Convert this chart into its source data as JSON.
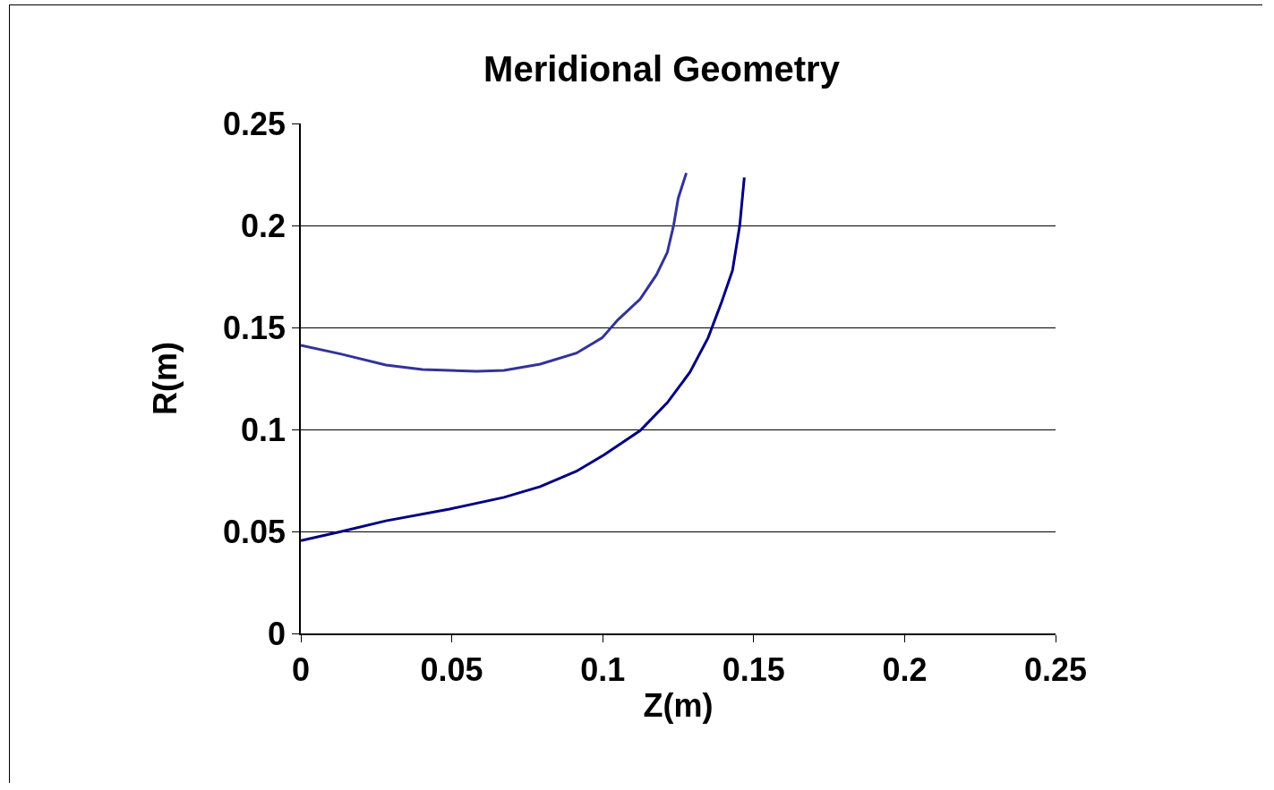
{
  "chart_data": {
    "type": "line",
    "title": "Meridional Geometry",
    "xlabel": "Z(m)",
    "ylabel": "R(m)",
    "series": [
      {
        "color": "#333399",
        "x": [
          0,
          0.0132,
          0.0282,
          0.0403,
          0.0583,
          0.0673,
          0.0793,
          0.0913,
          0.0998,
          0.105,
          0.1124,
          0.1178,
          0.1214,
          0.1235,
          0.125,
          0.1277
        ],
        "values": [
          0.1413,
          0.137,
          0.1316,
          0.1294,
          0.1285,
          0.129,
          0.132,
          0.1374,
          0.1449,
          0.1537,
          0.1639,
          0.1758,
          0.1868,
          0.2001,
          0.2133,
          0.2257
        ]
      },
      {
        "color": "#000080",
        "x": [
          0,
          0.0132,
          0.0282,
          0.0493,
          0.0673,
          0.0793,
          0.0913,
          0.1004,
          0.1124,
          0.1214,
          0.1289,
          0.1349,
          0.1394,
          0.143,
          0.1454,
          0.1469
        ],
        "values": [
          0.0455,
          0.0499,
          0.0552,
          0.061,
          0.0667,
          0.072,
          0.0795,
          0.0875,
          0.0994,
          0.1131,
          0.1281,
          0.1449,
          0.1625,
          0.178,
          0.2001,
          0.2235
        ]
      }
    ],
    "xlim": [
      0,
      0.25
    ],
    "xticks": [
      0,
      0.05,
      0.1,
      0.15,
      0.2,
      0.25
    ],
    "ylim": [
      0,
      0.25
    ],
    "yticks": [
      0,
      0.05,
      0.1,
      0.15,
      0.2,
      0.25
    ],
    "grid": "y",
    "marker": "none",
    "line_style": "solid"
  }
}
